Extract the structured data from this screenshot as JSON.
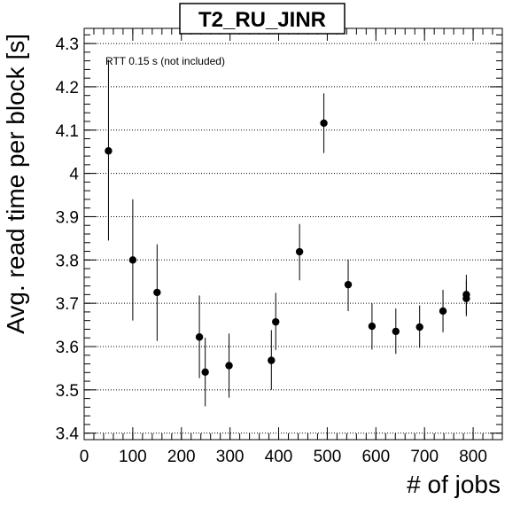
{
  "chart_data": {
    "type": "scatter",
    "title": "T2_RU_JINR",
    "xlabel": "# of jobs",
    "ylabel": "Avg. read time per block [s]",
    "annotation": "RTT 0.15 s (not included)",
    "xlim": [
      0,
      860
    ],
    "ylim": [
      3.385,
      4.335
    ],
    "xticks": [
      0,
      100,
      200,
      300,
      400,
      500,
      600,
      700,
      800
    ],
    "yticks": [
      3.4,
      3.5,
      3.6,
      3.7,
      3.8,
      3.9,
      4.0,
      4.1,
      4.2,
      4.3
    ],
    "ytick_labels": [
      "3.4",
      "3.5",
      "3.6",
      "3.7",
      "3.8",
      "3.9",
      "4",
      "4.1",
      "4.2",
      "4.3"
    ],
    "grid": "horizontal dotted",
    "marker_color": "#000000",
    "points": [
      {
        "x": 50,
        "y": 4.052,
        "ylow": 3.845,
        "yhigh": 4.262
      },
      {
        "x": 100,
        "y": 3.8,
        "ylow": 3.66,
        "yhigh": 3.94
      },
      {
        "x": 150,
        "y": 3.725,
        "ylow": 3.613,
        "yhigh": 3.836
      },
      {
        "x": 237,
        "y": 3.622,
        "ylow": 3.527,
        "yhigh": 3.718
      },
      {
        "x": 249,
        "y": 3.541,
        "ylow": 3.462,
        "yhigh": 3.62
      },
      {
        "x": 298,
        "y": 3.556,
        "ylow": 3.482,
        "yhigh": 3.63
      },
      {
        "x": 385,
        "y": 3.568,
        "ylow": 3.5,
        "yhigh": 3.638
      },
      {
        "x": 394,
        "y": 3.657,
        "ylow": 3.592,
        "yhigh": 3.724
      },
      {
        "x": 443,
        "y": 3.819,
        "ylow": 3.753,
        "yhigh": 3.883
      },
      {
        "x": 493,
        "y": 4.116,
        "ylow": 4.047,
        "yhigh": 4.185
      },
      {
        "x": 543,
        "y": 3.743,
        "ylow": 3.682,
        "yhigh": 3.801
      },
      {
        "x": 592,
        "y": 3.647,
        "ylow": 3.593,
        "yhigh": 3.7
      },
      {
        "x": 641,
        "y": 3.635,
        "ylow": 3.583,
        "yhigh": 3.688
      },
      {
        "x": 690,
        "y": 3.645,
        "ylow": 3.597,
        "yhigh": 3.695
      },
      {
        "x": 738,
        "y": 3.682,
        "ylow": 3.633,
        "yhigh": 3.731
      },
      {
        "x": 786,
        "y": 3.72,
        "ylow": 3.675,
        "yhigh": 3.766
      },
      {
        "x": 786,
        "y": 3.711,
        "ylow": 3.67,
        "yhigh": 3.752
      }
    ]
  }
}
